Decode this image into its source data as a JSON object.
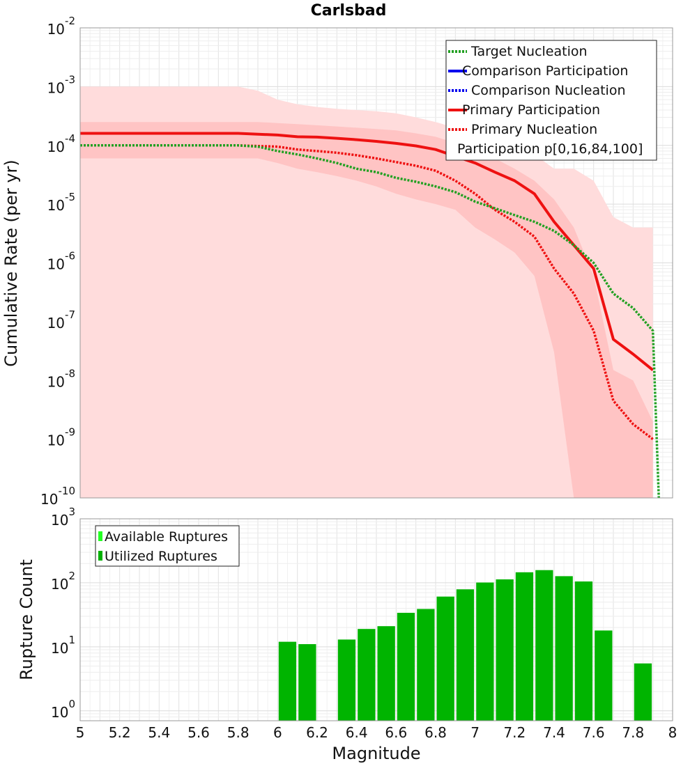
{
  "chart_data": [
    {
      "type": "line",
      "title": "Carlsbad",
      "xlabel": "Magnitude",
      "ylabel": "Cumulative Rate (per yr)",
      "yscale": "log",
      "xlim": [
        5,
        8
      ],
      "ylim": [
        1e-10,
        0.01
      ],
      "y_ticks": [
        {
          "base": "10",
          "exp": "-2",
          "value": 0.01
        },
        {
          "base": "10",
          "exp": "-3",
          "value": 0.001
        },
        {
          "base": "10",
          "exp": "-4",
          "value": 0.0001
        },
        {
          "base": "10",
          "exp": "-5",
          "value": 1e-05
        },
        {
          "base": "10",
          "exp": "-6",
          "value": 1e-06
        },
        {
          "base": "10",
          "exp": "-7",
          "value": 1e-07
        },
        {
          "base": "10",
          "exp": "-8",
          "value": 1e-08
        },
        {
          "base": "10",
          "exp": "-9",
          "value": 1e-09
        },
        {
          "base": "10",
          "exp": "-10",
          "value": 1e-10
        }
      ],
      "x_ticks": [
        "5",
        "5.2",
        "5.4",
        "5.6",
        "5.8",
        "6",
        "6.2",
        "6.4",
        "6.6",
        "6.8",
        "7",
        "7.2",
        "7.4",
        "7.6",
        "7.8",
        "8"
      ],
      "legend": {
        "position": "top-right",
        "entries": [
          {
            "label": "Target Nucleation",
            "color": "#22a022",
            "style": "dotted"
          },
          {
            "label": "Comparison Participation",
            "color": "#0000ee",
            "style": "solid"
          },
          {
            "label": "Comparison Nucleation",
            "color": "#0000ee",
            "style": "dotted"
          },
          {
            "label": "Primary Participation",
            "color": "#ee1111",
            "style": "solid"
          },
          {
            "label": "Primary Nucleation",
            "color": "#ee1111",
            "style": "dotted"
          },
          {
            "label": "Participation p[0,16,84,100]",
            "color": "#ffd9d9",
            "style": "band"
          }
        ]
      },
      "bands": [
        {
          "name": "Participation p[0,100]",
          "color": "#ffdcdc",
          "x": [
            5,
            5.8,
            5.9,
            6.0,
            6.1,
            6.2,
            6.3,
            6.4,
            6.5,
            6.6,
            6.7,
            6.8,
            6.9,
            7.0,
            7.1,
            7.2,
            7.3,
            7.4,
            7.5,
            7.6,
            7.7,
            7.8,
            7.9
          ],
          "lower": [
            1e-10,
            1e-10,
            1e-10,
            1e-10,
            1e-10,
            1e-10,
            1e-10,
            1e-10,
            1e-10,
            1e-10,
            1e-10,
            1e-10,
            1e-10,
            1e-10,
            1e-10,
            1e-10,
            1e-10,
            1e-10,
            1e-10,
            1e-10,
            1e-10,
            1e-10,
            1e-10
          ],
          "upper": [
            0.001,
            0.001,
            0.00085,
            0.0006,
            0.0005,
            0.00045,
            0.00042,
            0.0004,
            0.00038,
            0.00035,
            0.0003,
            0.00025,
            0.0002,
            0.00015,
            0.0001,
            8e-05,
            7e-05,
            4e-05,
            4e-05,
            2.5e-05,
            6e-06,
            4e-06,
            4e-06
          ]
        },
        {
          "name": "Participation p[16,84]",
          "color": "#ffc4c4",
          "x": [
            5,
            5.8,
            5.9,
            6.0,
            6.1,
            6.2,
            6.3,
            6.4,
            6.5,
            6.6,
            6.7,
            6.8,
            6.9,
            7.0,
            7.1,
            7.2,
            7.3,
            7.4,
            7.5,
            7.6,
            7.7,
            7.8,
            7.9
          ],
          "lower": [
            6e-05,
            6e-05,
            6e-05,
            5e-05,
            4e-05,
            3.5e-05,
            3e-05,
            2.5e-05,
            2e-05,
            1.5e-05,
            1.2e-05,
            1e-05,
            8e-06,
            4e-06,
            2.5e-06,
            1.5e-06,
            6e-07,
            3e-08,
            1e-10,
            1e-10,
            1e-10,
            1e-10,
            1e-10
          ],
          "upper": [
            0.00025,
            0.00025,
            0.00025,
            0.00024,
            0.00023,
            0.00022,
            0.00021,
            0.0002,
            0.00019,
            0.00018,
            0.00016,
            0.00014,
            0.00011,
            8e-05,
            6e-05,
            4e-05,
            2.5e-05,
            1.2e-05,
            4e-06,
            6e-07,
            1.5e-08,
            1e-08,
            2e-09
          ]
        }
      ],
      "series": [
        {
          "name": "Primary Participation",
          "color": "#ee1111",
          "style": "solid",
          "x": [
            5.0,
            5.8,
            6.0,
            6.1,
            6.2,
            6.3,
            6.4,
            6.5,
            6.6,
            6.7,
            6.8,
            6.9,
            7.0,
            7.1,
            7.2,
            7.3,
            7.4,
            7.5,
            7.6,
            7.7,
            7.8,
            7.9
          ],
          "y": [
            0.00016,
            0.00016,
            0.00015,
            0.00014,
            0.000138,
            0.000132,
            0.000125,
            0.000117,
            0.000108,
            9.8e-05,
            8.5e-05,
            6.5e-05,
            5e-05,
            3.5e-05,
            2.5e-05,
            1.5e-05,
            5e-06,
            2e-06,
            8e-07,
            5e-08,
            2.8e-08,
            1.5e-08
          ]
        },
        {
          "name": "Primary Nucleation",
          "color": "#ee1111",
          "style": "dotted",
          "x": [
            5.0,
            5.8,
            6.0,
            6.1,
            6.2,
            6.3,
            6.4,
            6.5,
            6.6,
            6.7,
            6.8,
            6.9,
            7.0,
            7.1,
            7.2,
            7.3,
            7.4,
            7.5,
            7.6,
            7.7,
            7.8,
            7.9
          ],
          "y": [
            0.0001,
            0.0001,
            9.5e-05,
            8.5e-05,
            8e-05,
            7.5e-05,
            6.8e-05,
            6e-05,
            5.2e-05,
            4.5e-05,
            3.7e-05,
            2.5e-05,
            1.5e-05,
            8e-06,
            5e-06,
            2.8e-06,
            8e-07,
            3e-07,
            7e-08,
            4.5e-09,
            1.8e-09,
            1e-09
          ]
        },
        {
          "name": "Target Nucleation",
          "color": "#22a022",
          "style": "dotted",
          "x": [
            5.0,
            5.8,
            5.9,
            6.0,
            6.1,
            6.2,
            6.3,
            6.4,
            6.5,
            6.6,
            6.7,
            6.8,
            6.9,
            7.0,
            7.1,
            7.2,
            7.3,
            7.4,
            7.5,
            7.6,
            7.7,
            7.8,
            7.9,
            7.93
          ],
          "y": [
            0.0001,
            0.0001,
            9.5e-05,
            8e-05,
            7e-05,
            6e-05,
            5e-05,
            4e-05,
            3.5e-05,
            2.8e-05,
            2.4e-05,
            2e-05,
            1.6e-05,
            1.1e-05,
            8.5e-06,
            6.5e-06,
            5e-06,
            3.5e-06,
            2e-06,
            1e-06,
            3e-07,
            1.7e-07,
            7e-08,
            1e-10
          ]
        }
      ]
    },
    {
      "type": "bar",
      "xlabel": "Magnitude",
      "ylabel": "Rupture Count",
      "yscale": "log",
      "xlim": [
        5,
        8
      ],
      "ylim": [
        0.7,
        1000
      ],
      "y_ticks": [
        {
          "base": "10",
          "exp": "3",
          "value": 1000
        },
        {
          "base": "10",
          "exp": "2",
          "value": 100
        },
        {
          "base": "10",
          "exp": "1",
          "value": 10
        },
        {
          "base": "10",
          "exp": "0",
          "value": 1
        }
      ],
      "legend": {
        "position": "top-left",
        "entries": [
          {
            "label": "Available Ruptures",
            "color": "#22ff22"
          },
          {
            "label": "Utilized Ruptures",
            "color": "#00b000"
          }
        ]
      },
      "bar_color": "#00b400",
      "bars": [
        {
          "x": 6.05,
          "value": 12
        },
        {
          "x": 6.15,
          "value": 11
        },
        {
          "x": 6.35,
          "value": 13
        },
        {
          "x": 6.45,
          "value": 19
        },
        {
          "x": 6.55,
          "value": 21
        },
        {
          "x": 6.65,
          "value": 34
        },
        {
          "x": 6.75,
          "value": 39
        },
        {
          "x": 6.85,
          "value": 61
        },
        {
          "x": 6.95,
          "value": 79
        },
        {
          "x": 7.05,
          "value": 101
        },
        {
          "x": 7.15,
          "value": 113
        },
        {
          "x": 7.25,
          "value": 146
        },
        {
          "x": 7.35,
          "value": 158
        },
        {
          "x": 7.45,
          "value": 127
        },
        {
          "x": 7.55,
          "value": 105
        },
        {
          "x": 7.65,
          "value": 18
        },
        {
          "x": 7.85,
          "value": 5.5
        }
      ]
    }
  ]
}
